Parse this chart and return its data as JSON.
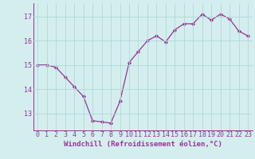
{
  "x": [
    0,
    1,
    2,
    3,
    4,
    5,
    6,
    7,
    8,
    9,
    10,
    11,
    12,
    13,
    14,
    15,
    16,
    17,
    18,
    19,
    20,
    21,
    22,
    23
  ],
  "y": [
    15.0,
    15.0,
    14.9,
    14.5,
    14.1,
    13.7,
    12.7,
    12.65,
    12.6,
    13.5,
    15.1,
    15.55,
    16.0,
    16.2,
    15.95,
    16.45,
    16.7,
    16.7,
    17.1,
    16.85,
    17.1,
    16.9,
    16.4,
    16.2
  ],
  "line_color": "#993399",
  "marker": "D",
  "marker_size": 2.2,
  "bg_color": "#d4eeee",
  "grid_color": "#b0d8d8",
  "xlabel": "Windchill (Refroidissement éolien,°C)",
  "xlabel_fontsize": 6.5,
  "tick_fontsize": 6.0,
  "ylim": [
    12.3,
    17.55
  ],
  "yticks": [
    13,
    14,
    15,
    16,
    17
  ],
  "xticks": [
    0,
    1,
    2,
    3,
    4,
    5,
    6,
    7,
    8,
    9,
    10,
    11,
    12,
    13,
    14,
    15,
    16,
    17,
    18,
    19,
    20,
    21,
    22,
    23
  ],
  "xlim": [
    -0.5,
    23.5
  ]
}
